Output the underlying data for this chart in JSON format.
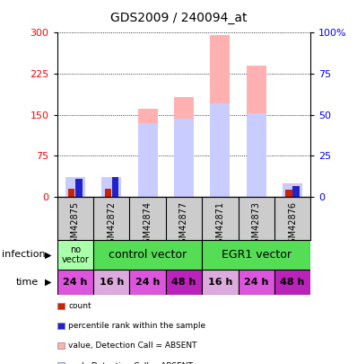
{
  "title": "GDS2009 / 240094_at",
  "samples": [
    "GSM42875",
    "GSM42872",
    "GSM42874",
    "GSM42877",
    "GSM42871",
    "GSM42873",
    "GSM42876"
  ],
  "value_absent": [
    30,
    28,
    160,
    182,
    295,
    240,
    25
  ],
  "rank_absent": [
    35,
    35,
    135,
    143,
    170,
    152,
    22
  ],
  "count_values": [
    14,
    14,
    0,
    0,
    0,
    0,
    12
  ],
  "rank_values": [
    33,
    35,
    0,
    0,
    0,
    0,
    20
  ],
  "ylim_left": [
    0,
    300
  ],
  "ylim_right": [
    0,
    100
  ],
  "yticks_left": [
    0,
    75,
    150,
    225,
    300
  ],
  "yticks_right": [
    0,
    25,
    50,
    75,
    100
  ],
  "time_labels": [
    "24 h",
    "16 h",
    "24 h",
    "48 h",
    "16 h",
    "24 h",
    "48 h"
  ],
  "time_colors": [
    "#dd55dd",
    "#ddaadd",
    "#dd55dd",
    "#bb22bb",
    "#ddaadd",
    "#dd55dd",
    "#bb22bb"
  ],
  "color_value_absent": "#ffb0b0",
  "color_rank_absent": "#c8ccff",
  "color_count": "#cc2200",
  "color_rank": "#2222cc",
  "plot_bg": "#ffffff",
  "sample_bg": "#cccccc",
  "infection_no_vector_color": "#aaffaa",
  "infection_control_color": "#55dd55",
  "infection_egr1_color": "#55dd55",
  "legend_items": [
    [
      "#cc2200",
      "count"
    ],
    [
      "#2222cc",
      "percentile rank within the sample"
    ],
    [
      "#ffb0b0",
      "value, Detection Call = ABSENT"
    ],
    [
      "#c8ccff",
      "rank, Detection Call = ABSENT"
    ]
  ]
}
